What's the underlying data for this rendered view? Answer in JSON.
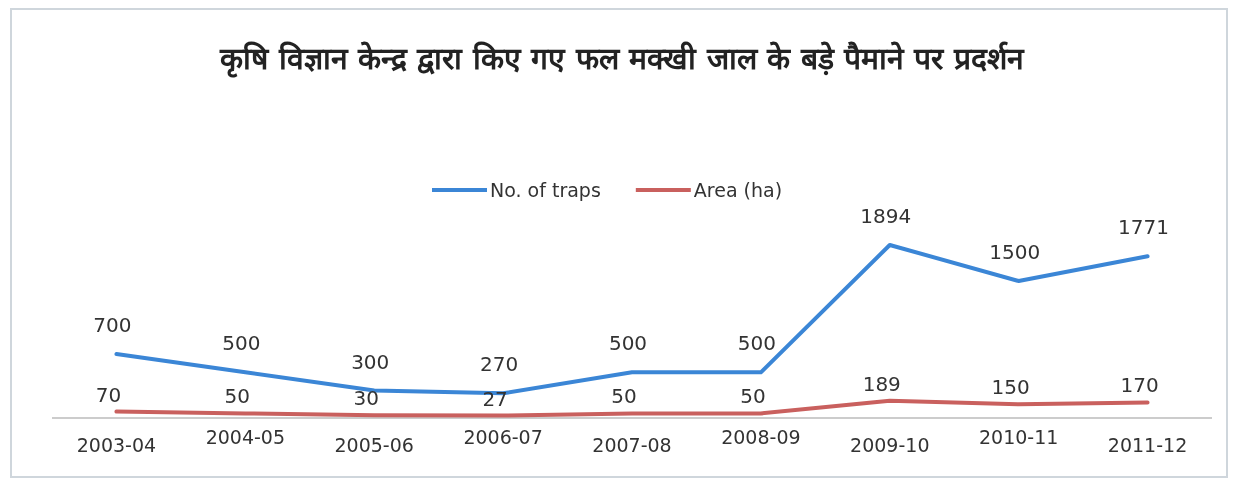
{
  "chart_data": {
    "type": "line",
    "title": "कृषि विज्ञान केन्द्र द्वारा किए गए फल मक्खी जाल के बड़े पैमाने पर प्रदर्शन",
    "categories": [
      "2003-04",
      "2004-05",
      "2005-06",
      "2006-07",
      "2007-08",
      "2008-09",
      "2009-10",
      "2010-11",
      "2011-12"
    ],
    "series": [
      {
        "name": "No. of traps",
        "color": "#3b86d6",
        "values": [
          700,
          500,
          300,
          270,
          500,
          500,
          1894,
          1500,
          1771
        ]
      },
      {
        "name": "Area (ha)",
        "color": "#c9605e",
        "values": [
          70,
          50,
          30,
          27,
          50,
          50,
          189,
          150,
          170
        ]
      }
    ],
    "data_labels": true,
    "legend": "top",
    "grid": false
  }
}
